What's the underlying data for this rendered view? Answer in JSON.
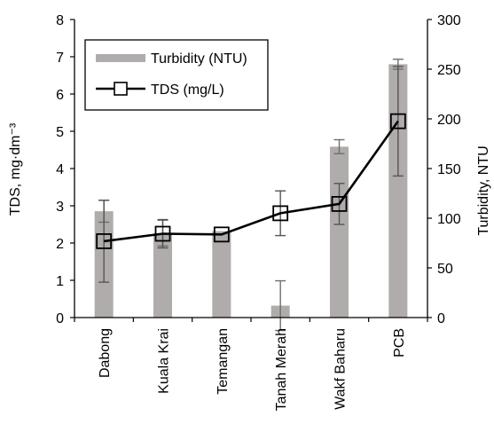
{
  "chart_data": {
    "type": "bar",
    "categories": [
      "Dabong",
      "Kuala Krai",
      "Temangan",
      "Tanah Merah",
      "Wakf Baharu",
      "PCB"
    ],
    "series": [
      {
        "name": "Turbidity (NTU)",
        "type": "bar",
        "axis": "right",
        "values": [
          107,
          85,
          87,
          12,
          172,
          255
        ],
        "error": [
          11,
          13,
          0,
          25,
          7,
          5
        ],
        "color": "#b0acab"
      },
      {
        "name": "TDS (mg/L)",
        "type": "line",
        "axis": "left",
        "marker": "square",
        "values": [
          2.05,
          2.25,
          2.23,
          2.8,
          3.05,
          5.27
        ],
        "error": [
          1.1,
          0.38,
          0.0,
          0.6,
          0.55,
          1.47
        ],
        "color": "#000000"
      }
    ],
    "ylabel": "TDS, mg·dm⁻³",
    "ylabel_right": "Turbidity, NTU",
    "ylim": [
      0,
      8
    ],
    "ylim_right": [
      0,
      300
    ],
    "yticks": [
      "0",
      "1",
      "2",
      "3",
      "4",
      "5",
      "6",
      "7",
      "8"
    ],
    "yticks_right": [
      "0",
      "50",
      "100",
      "150",
      "200",
      "250",
      "300"
    ],
    "grid": false,
    "legend_position": "top-left"
  }
}
